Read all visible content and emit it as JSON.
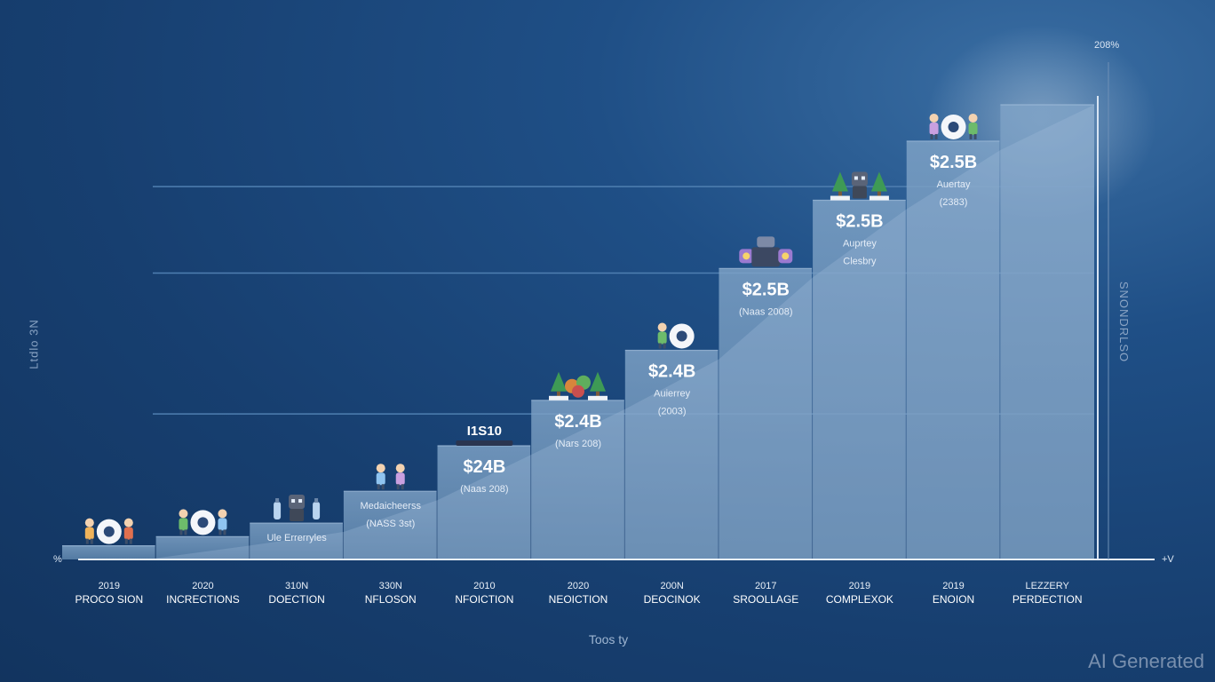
{
  "chart_data": {
    "type": "bar",
    "title": "",
    "xlabel": "Toos ty",
    "ylabel_left": "Ltdlo 3N",
    "ylabel_right": "SNONDRLSO",
    "corner_top": "208%",
    "corner_left": "%",
    "corner_right": "+V",
    "ylim": [
      0,
      100
    ],
    "gridlines": [
      32,
      63,
      82
    ],
    "categories": [
      {
        "year": "2019",
        "name": "PROCO SION"
      },
      {
        "year": "2020",
        "name": "INCRECTIONS"
      },
      {
        "year": "310N",
        "name": "DOECTION"
      },
      {
        "year": "330N",
        "name": "NFLOSON"
      },
      {
        "year": "2010",
        "name": "NFOICTION"
      },
      {
        "year": "2020",
        "name": "NEOICTION"
      },
      {
        "year": "200N",
        "name": "DEOCINOK"
      },
      {
        "year": "2017",
        "name": "SROOLLAGE"
      },
      {
        "year": "2019",
        "name": "COMPLEXOK"
      },
      {
        "year": "2019",
        "name": "ENOION"
      },
      {
        "year": "LEZZERY",
        "name": "PERDECTION"
      }
    ],
    "values": [
      3,
      5,
      8,
      15,
      25,
      35,
      46,
      64,
      79,
      92,
      100
    ],
    "labels": [
      {
        "value": "",
        "sub": []
      },
      {
        "value": "",
        "sub": []
      },
      {
        "value": "",
        "sub": [
          "Ule Errerryles"
        ]
      },
      {
        "value": "",
        "sub": [
          "Medaicheerss",
          "(NASS 3st)"
        ]
      },
      {
        "value": "$24B",
        "sub": [
          "(Naas 208)"
        ]
      },
      {
        "value": "$2.4B",
        "sub": [
          "(Nars 208)"
        ]
      },
      {
        "value": "$2.4B",
        "sub": [
          "Auierrey",
          "(2003)"
        ]
      },
      {
        "value": "$2.5B",
        "sub": [
          "(Naas 2008)"
        ]
      },
      {
        "value": "$2.5B",
        "sub": [
          "Auprtey",
          "Clesbry"
        ]
      },
      {
        "value": "$2.5B",
        "sub": [
          "Auertay",
          "(2383)"
        ]
      },
      {
        "value": "",
        "sub": []
      }
    ],
    "bar_top_text": [
      {
        "index": 4,
        "text": "I1S10"
      }
    ],
    "icon_groups": [
      {
        "index": 0,
        "icons": [
          "person-icon",
          "robot-eye-icon",
          "person-icon"
        ]
      },
      {
        "index": 1,
        "icons": [
          "person-icon",
          "robot-eye-icon",
          "person-icon"
        ]
      },
      {
        "index": 2,
        "icons": [
          "bottle-icon",
          "robot-icon",
          "bottle-icon"
        ]
      },
      {
        "index": 3,
        "icons": [
          "person-icon",
          "person-icon"
        ]
      },
      {
        "index": 5,
        "icons": [
          "tree-icon",
          "cluster-icon",
          "tree-icon"
        ]
      },
      {
        "index": 6,
        "icons": [
          "person-icon",
          "robot-eye-icon"
        ]
      },
      {
        "index": 7,
        "icons": [
          "gear-icon",
          "machine-icon",
          "gear-icon"
        ]
      },
      {
        "index": 8,
        "icons": [
          "tree-icon",
          "robot-icon",
          "tree-icon"
        ]
      },
      {
        "index": 9,
        "icons": [
          "person-icon",
          "robot-eye-icon",
          "person-icon"
        ]
      }
    ],
    "colors": {
      "bar": "#6189b0",
      "bar_light": "#7fa3c7",
      "grid": "#4f7fb1",
      "text": "#ffffff",
      "subtext": "#e5edf7"
    }
  },
  "watermark": "AI Generated"
}
